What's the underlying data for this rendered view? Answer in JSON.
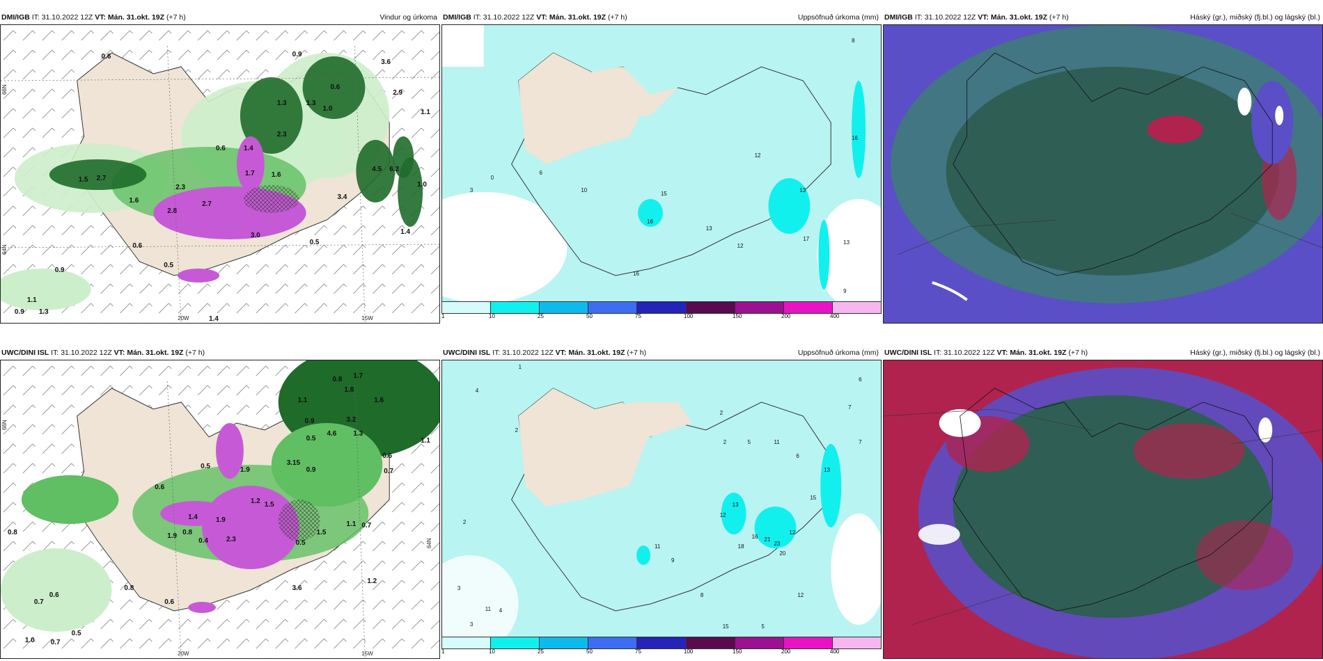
{
  "panels": [
    {
      "model": "DMI/IGB",
      "it_label": "IT:",
      "it_value": "31.10.2022 12Z",
      "vt_label": "VT: Mán. 31.okt. 19Z",
      "lead": "(+7 h)",
      "title": "Vindur og úrkoma",
      "axis_labels": [
        "20W",
        "15W",
        "66N",
        "64N"
      ],
      "values": [
        "0.6",
        "0.9",
        "3.6",
        "2.9",
        "1.1",
        "0.6",
        "1.3",
        "1.3",
        "1.0",
        "0.6",
        "2.3",
        "1.4",
        "1.7",
        "1.5",
        "2.7",
        "1.6",
        "2.3",
        "1.6",
        "2.7",
        "2.8",
        "3.0",
        "0.5",
        "0.6",
        "0.9",
        "0.5",
        "1.1",
        "0.9",
        "1.3",
        "1.4",
        "3.4",
        "6.2",
        "4.5",
        "1.0",
        "1.4"
      ]
    },
    {
      "model": "DMI/IGB",
      "it_label": "IT:",
      "it_value": "31.10.2022 12Z",
      "vt_label": "VT: Mán. 31.okt. 19Z",
      "lead": "(+7 h)",
      "title": "Uppsöfnuð úrkoma (mm)",
      "values": [
        "8",
        "16",
        "12",
        "3",
        "0",
        "6",
        "10",
        "15",
        "16",
        "13",
        "12",
        "13",
        "17",
        "13",
        "9",
        "16"
      ],
      "legend": [
        "1",
        "10",
        "25",
        "50",
        "75",
        "100",
        "150",
        "200",
        "400"
      ]
    },
    {
      "model": "DMI/IGB",
      "it_label": "IT:",
      "it_value": "31.10.2022 12Z",
      "vt_label": "VT: Mán. 31.okt. 19Z",
      "lead": "(+7 h)",
      "title": "Háský (gr.), miðský (fj.bl.) og lágský (bl.)"
    },
    {
      "model": "UWC/DINI ISL",
      "it_label": "IT:",
      "it_value": "31.10.2022 12Z",
      "vt_label": "VT: Mán. 31.okt. 19Z",
      "lead": "(+7 h)",
      "title": "Vindur og úrkoma",
      "axis_labels": [
        "20W",
        "15W",
        "66N",
        "64N"
      ],
      "values": [
        "0.8",
        "1.7",
        "1.8",
        "1.1",
        "1.6",
        "0.9",
        "3.2",
        "4.6",
        "1.3",
        "1.1",
        "0.5",
        "0.6",
        "0.7",
        "0.8",
        "0.6",
        "0.5",
        "1.9",
        "1.2",
        "1.5",
        "3.15",
        "0.9",
        "1.1",
        "0.7",
        "1.2",
        "3.6",
        "0.8",
        "0.6",
        "0.7",
        "1.0",
        "0.7",
        "0.5",
        "0.6",
        "1.9",
        "2.3",
        "0.4",
        "0.8",
        "1.4",
        "1.9",
        "0.5",
        "1.5"
      ]
    },
    {
      "model": "UWC/DINI ISL",
      "it_label": "IT:",
      "it_value": "31.10.2022 12Z",
      "vt_label": "VT: Mán. 31.okt. 19Z",
      "lead": "(+7 h)",
      "title": "Uppsöfnuð úrkoma (mm)",
      "values": [
        "1",
        "4",
        "2",
        "2",
        "6",
        "7",
        "7",
        "2",
        "5",
        "11",
        "6",
        "13",
        "15",
        "12",
        "13",
        "12",
        "16",
        "21",
        "23",
        "20",
        "18",
        "11",
        "9",
        "12",
        "8",
        "3",
        "5",
        "15",
        "2",
        "11",
        "3",
        "4"
      ],
      "legend": [
        "1",
        "10",
        "25",
        "50",
        "75",
        "100",
        "150",
        "200",
        "400"
      ]
    },
    {
      "model": "UWC/DINI ISL",
      "it_label": "IT:",
      "it_value": "31.10.2022 12Z",
      "vt_label": "VT: Mán. 31.okt. 19Z",
      "lead": "(+7 h)",
      "title": "Háský (gr.), miðský (fj.bl.) og lágský (bl.)"
    }
  ],
  "colors": {
    "land": "#efe4d6",
    "precip_light": "#cdeecb",
    "precip_mid": "#5fbf62",
    "precip_dark": "#1f6b2a",
    "precip_magenta": "#c65ad6",
    "accum_light": "#b8f4f2",
    "cloud_high": "#2f5e55",
    "cloud_mid": "#5a4fc6",
    "cloud_low": "#b0234f",
    "legend": [
      "#d6fbfb",
      "#12f0ee",
      "#0fb9eb",
      "#3d6df0",
      "#2424b8",
      "#5a0a4e",
      "#9c1190",
      "#e814c4",
      "#f6b6f0"
    ]
  }
}
